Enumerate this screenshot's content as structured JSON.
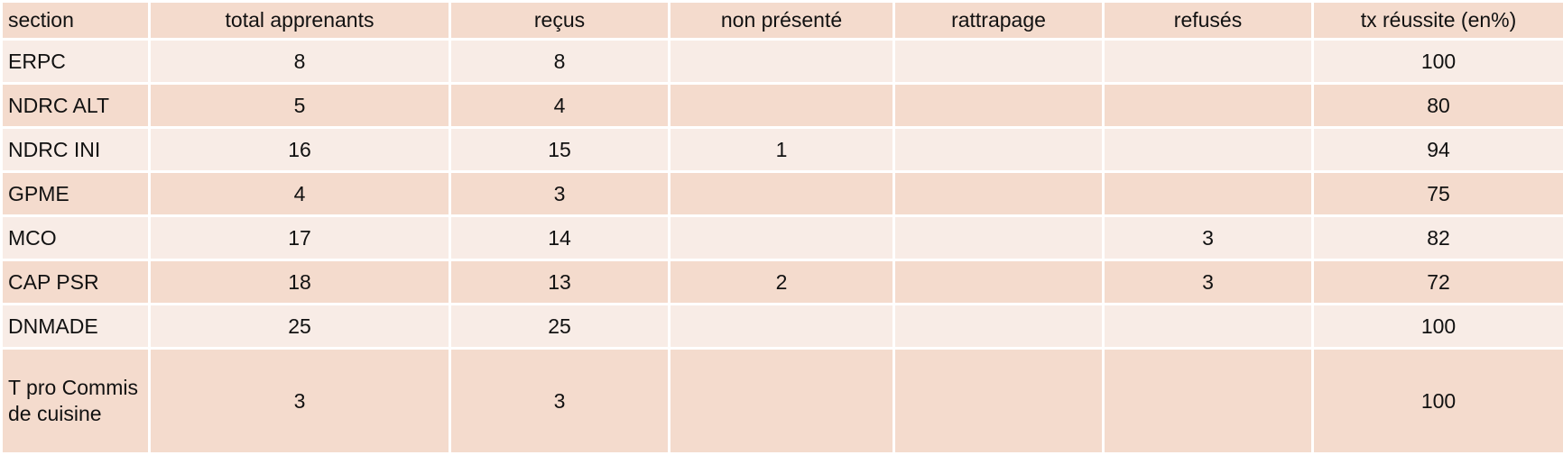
{
  "colors": {
    "dark_row": "#f4dbcd",
    "light_row": "#f8ece6",
    "border": "#ffffff"
  },
  "headers": [
    "section",
    "total apprenants",
    "reçus",
    "non présenté",
    "rattrapage",
    "refusés",
    "tx réussite (en%)"
  ],
  "rows": [
    [
      "ERPC",
      "8",
      "8",
      "",
      "",
      "",
      "100"
    ],
    [
      "NDRC ALT",
      "5",
      "4",
      "",
      "",
      "",
      "80"
    ],
    [
      "NDRC INI",
      "16",
      "15",
      "1",
      "",
      "",
      "94"
    ],
    [
      "GPME",
      "4",
      "3",
      "",
      "",
      "",
      "75"
    ],
    [
      "MCO",
      "17",
      "14",
      "",
      "",
      "3",
      "82"
    ],
    [
      "CAP PSR",
      "18",
      "13",
      "2",
      "",
      "3",
      "72"
    ],
    [
      "DNMADE",
      "25",
      "25",
      "",
      "",
      "",
      "100"
    ],
    [
      "T pro Commis de cuisine",
      "3",
      "3",
      "",
      "",
      "",
      "100"
    ]
  ]
}
